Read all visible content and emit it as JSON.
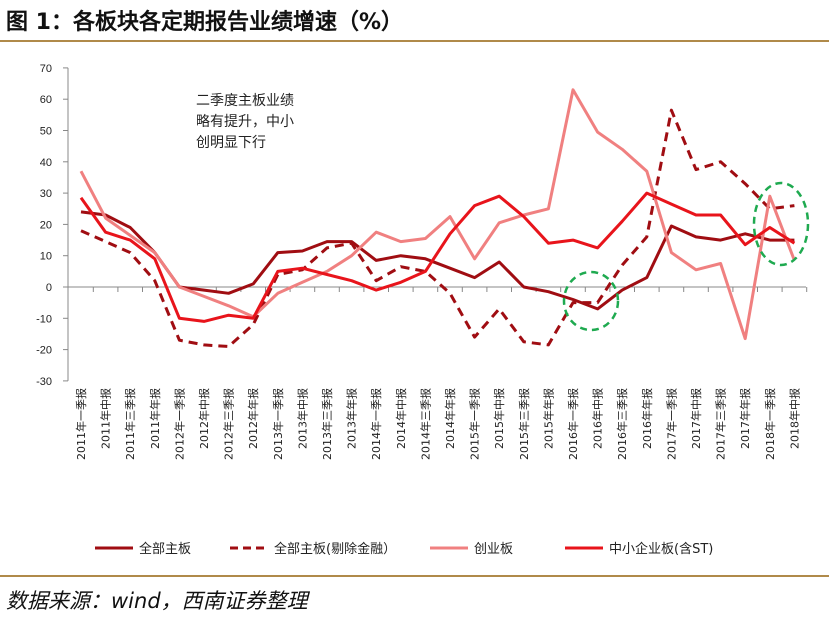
{
  "title": "图 1：各板块各定期报告业绩增速（%）",
  "source": "数据来源：wind，西南证券整理",
  "chart_data": {
    "type": "line",
    "title": "各板块各定期报告业绩增速（%）",
    "ylim": [
      -30,
      70
    ],
    "yticks": [
      -30,
      -20,
      -10,
      0,
      10,
      20,
      30,
      40,
      50,
      60,
      70
    ],
    "annotation": [
      "二季度主板业绩",
      "略有提升，中小",
      "创明显下行"
    ],
    "categories": [
      "2011年一季报",
      "2011年中报",
      "2011年三季报",
      "2011年年报",
      "2012年一季报",
      "2012年中报",
      "2012年三季报",
      "2012年年报",
      "2013年一季报",
      "2013年中报",
      "2013年三季报",
      "2013年年报",
      "2014年一季报",
      "2014年中报",
      "2014年三季报",
      "2014年年报",
      "2015年一季报",
      "2015年中报",
      "2015年三季报",
      "2015年年报",
      "2016年一季报",
      "2016年中报",
      "2016年三季报",
      "2016年年报",
      "2017年一季报",
      "2017年中报",
      "2017年三季报",
      "2017年年报",
      "2018年一季报",
      "2018年中报"
    ],
    "series": [
      {
        "name": "全部主板",
        "color": "#a00d12",
        "dash": false,
        "values": [
          24,
          23,
          19,
          11,
          0,
          -1,
          -2,
          1,
          11,
          11.5,
          14.5,
          14.5,
          8.5,
          10,
          9,
          6,
          3,
          8,
          0,
          -1.5,
          -4,
          -7,
          -1,
          3,
          19.5,
          16,
          15,
          17,
          15,
          15
        ]
      },
      {
        "name": "全部主板(剔除金融）",
        "color": "#a00d12",
        "dash": true,
        "values": [
          18,
          14.5,
          11,
          2,
          -17,
          -18.5,
          -19,
          -12,
          4,
          5.5,
          12.5,
          14,
          2,
          6.5,
          5,
          -2,
          -16,
          -7,
          -17.5,
          -18.5,
          -5,
          -5,
          7,
          16,
          56.5,
          37.5,
          40,
          33,
          25,
          26
        ]
      },
      {
        "name": "创业板",
        "color": "#f08080",
        "dash": false,
        "values": [
          37,
          22,
          16.5,
          11,
          0,
          -3,
          -6,
          -9.5,
          -2,
          1.5,
          5,
          10,
          17.5,
          14.5,
          15.5,
          22.5,
          9,
          20.5,
          23,
          25,
          63,
          49.5,
          44,
          37,
          11,
          5.5,
          7.5,
          -16.5,
          29,
          8.5
        ]
      },
      {
        "name": "中小企业板(含ST)",
        "color": "#e8141b",
        "dash": false,
        "values": [
          28.5,
          17.5,
          15,
          9,
          -10,
          -11,
          -9,
          -10,
          5,
          6,
          4,
          2,
          -1,
          1.5,
          5,
          17,
          26,
          29,
          22.5,
          14,
          15,
          12.5,
          21,
          30,
          26.5,
          23,
          23,
          13.5,
          19,
          14
        ]
      }
    ],
    "highlight_color": "#1faa50"
  }
}
